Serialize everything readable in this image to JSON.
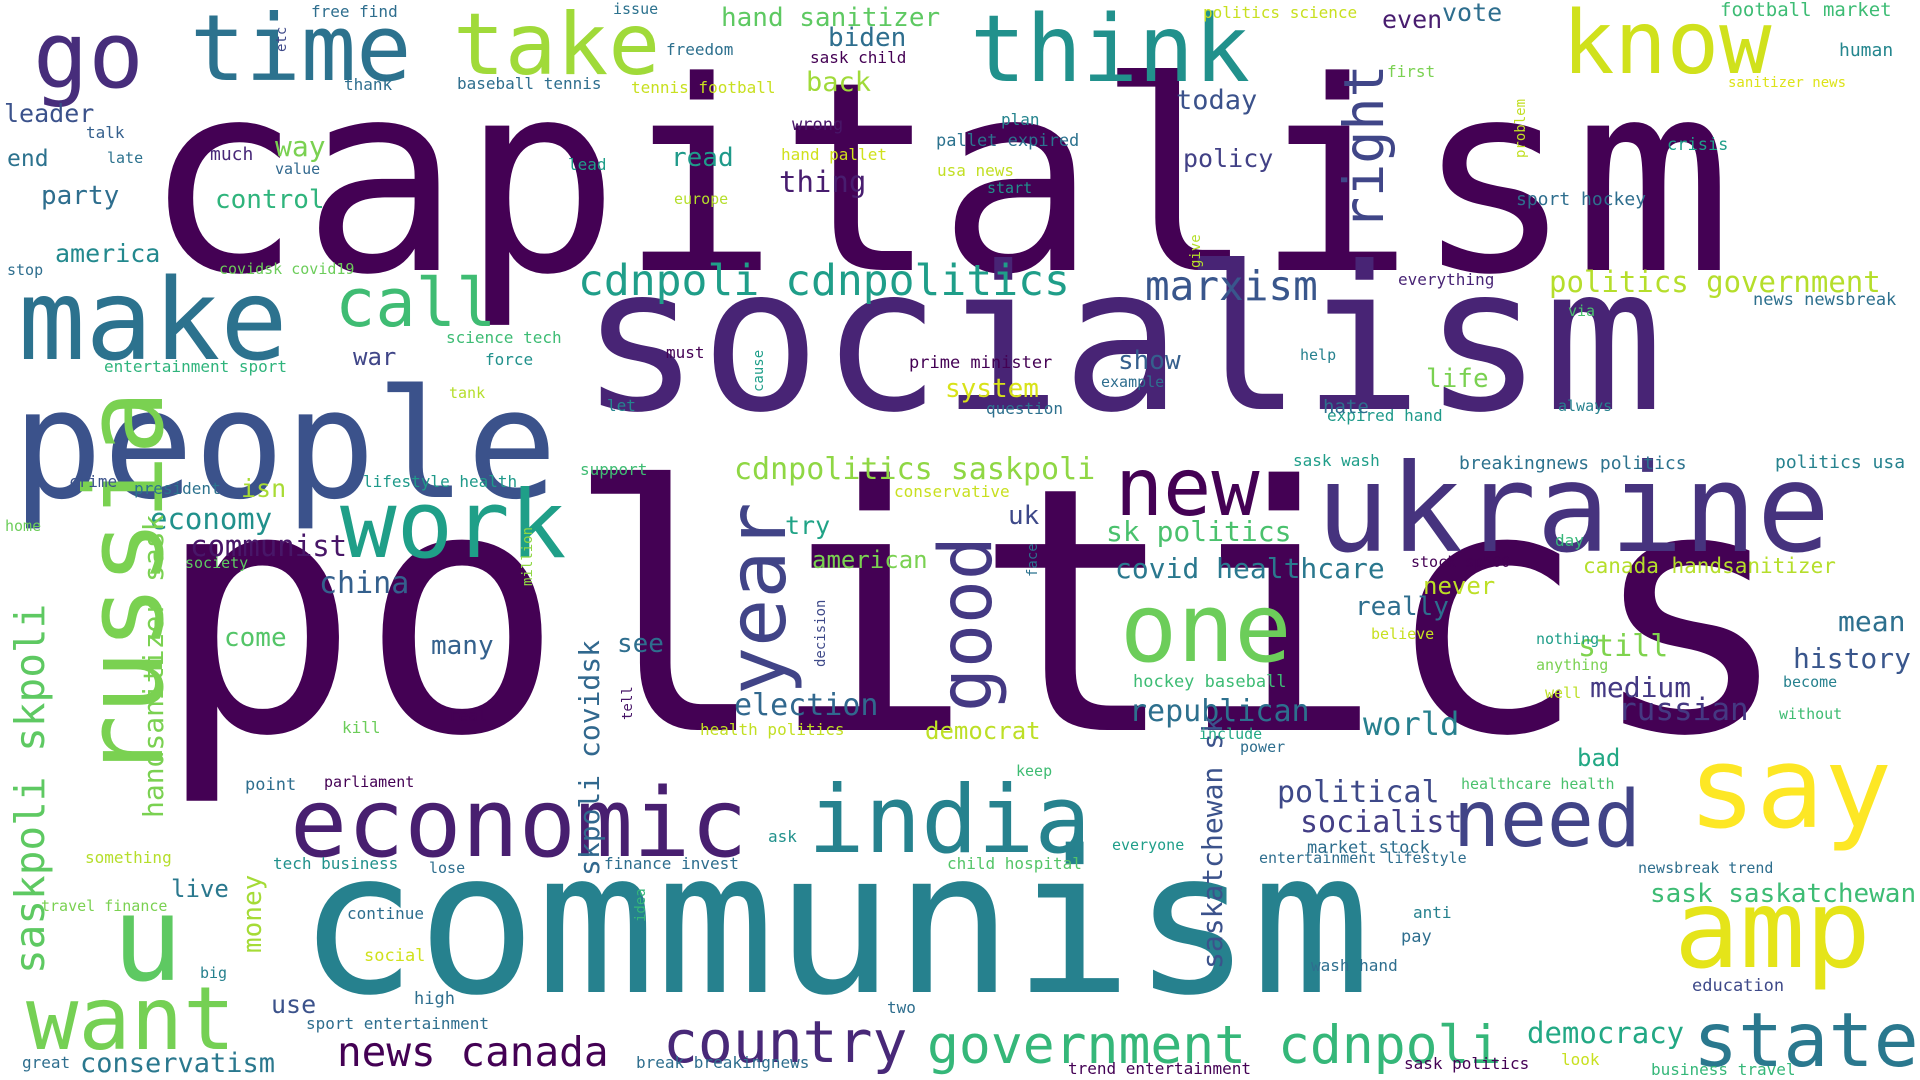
{
  "words": [
    {
      "text": "capitalism",
      "color": "#440154"
    },
    {
      "text": "politics",
      "color": "#440154"
    },
    {
      "text": "socialism",
      "color": "#482475"
    },
    {
      "text": "communism",
      "color": "#26818e"
    },
    {
      "text": "ukraine",
      "color": "#46337e"
    },
    {
      "text": "people",
      "color": "#3b528b"
    },
    {
      "text": "russia",
      "color": "#7ad151"
    },
    {
      "text": "make",
      "color": "#2c728e"
    },
    {
      "text": "think",
      "color": "#21918c"
    },
    {
      "text": "take",
      "color": "#a0da39"
    },
    {
      "text": "know",
      "color": "#d0e11c"
    },
    {
      "text": "go",
      "color": "#472d7b"
    },
    {
      "text": "time",
      "color": "#2c728e"
    },
    {
      "text": "say",
      "color": "#fde725"
    },
    {
      "text": "amp",
      "color": "#e5e419"
    },
    {
      "text": "economic",
      "color": "#481f70"
    },
    {
      "text": "india",
      "color": "#26828e"
    },
    {
      "text": "want",
      "color": "#75d054"
    },
    {
      "text": "u",
      "color": "#5ec962"
    },
    {
      "text": "one",
      "color": "#6ccd5a"
    },
    {
      "text": "work",
      "color": "#1f9f88"
    },
    {
      "text": "new",
      "color": "#440154"
    },
    {
      "text": "need",
      "color": "#414487"
    },
    {
      "text": "state",
      "color": "#2a788e"
    },
    {
      "text": "year",
      "color": "#414487"
    },
    {
      "text": "good",
      "color": "#443983"
    },
    {
      "text": "right",
      "color": "#404688"
    },
    {
      "text": "call",
      "color": "#3fbc73"
    },
    {
      "text": "country",
      "color": "#482878"
    },
    {
      "text": "government cdnpoli",
      "color": "#35b779"
    },
    {
      "text": "cdnpoli cdnpolitics",
      "color": "#1f9e89"
    },
    {
      "text": "news canada",
      "color": "#440154"
    },
    {
      "text": "saskpoli skpoli",
      "color": "#5ec962"
    },
    {
      "text": "marxism",
      "color": "#39568c"
    },
    {
      "text": "politics government",
      "color": "#b5de2b"
    },
    {
      "text": "cdnpolitics saskpoli",
      "color": "#8fd744"
    },
    {
      "text": "political",
      "color": "#3e4989"
    },
    {
      "text": "socialist",
      "color": "#433e85"
    },
    {
      "text": "republican",
      "color": "#2d708e"
    },
    {
      "text": "election",
      "color": "#31688e"
    },
    {
      "text": "world",
      "color": "#27808e"
    },
    {
      "text": "russian",
      "color": "#453882"
    },
    {
      "text": "history",
      "color": "#39568c"
    },
    {
      "text": "democracy",
      "color": "#22a884"
    },
    {
      "text": "communist",
      "color": "#481668"
    },
    {
      "text": "economy",
      "color": "#21918c"
    },
    {
      "text": "china",
      "color": "#34608d"
    },
    {
      "text": "skpoli covidsk",
      "color": "#31688e"
    },
    {
      "text": "handsanitizer sask",
      "color": "#7ad151"
    },
    {
      "text": "saskatchewan sk",
      "color": "#3b528b"
    },
    {
      "text": "covid healthcare",
      "color": "#2a788e"
    },
    {
      "text": "sk politics",
      "color": "#4ac16d"
    },
    {
      "text": "medium",
      "color": "#443983"
    },
    {
      "text": "still",
      "color": "#7fd34e"
    },
    {
      "text": "mean",
      "color": "#2d708e"
    },
    {
      "text": "sask saskatchewan",
      "color": "#3dbc74"
    },
    {
      "text": "conservatism",
      "color": "#2a788e"
    },
    {
      "text": "money",
      "color": "#a5db36"
    },
    {
      "text": "hand sanitizer",
      "color": "#5ec962"
    },
    {
      "text": "biden",
      "color": "#2e6e8e"
    },
    {
      "text": "vote",
      "color": "#2e6e8e"
    },
    {
      "text": "even",
      "color": "#481d6f"
    },
    {
      "text": "football market",
      "color": "#3dbc74"
    },
    {
      "text": "human",
      "color": "#24868e"
    },
    {
      "text": "today",
      "color": "#3b528b"
    },
    {
      "text": "policy",
      "color": "#424186"
    },
    {
      "text": "thing",
      "color": "#481d6f"
    },
    {
      "text": "read",
      "color": "#1f9a8a"
    },
    {
      "text": "control",
      "color": "#2fb47c"
    },
    {
      "text": "way",
      "color": "#7ad151"
    },
    {
      "text": "party",
      "color": "#2e6e8e"
    },
    {
      "text": "leader",
      "color": "#3b528b"
    },
    {
      "text": "end",
      "color": "#2c728e"
    },
    {
      "text": "america",
      "color": "#23898e"
    },
    {
      "text": "back",
      "color": "#a0da39"
    },
    {
      "text": "system",
      "color": "#d8e219"
    },
    {
      "text": "show",
      "color": "#355f8d"
    },
    {
      "text": "life",
      "color": "#7ad151"
    },
    {
      "text": "war",
      "color": "#404688"
    },
    {
      "text": "uk",
      "color": "#3e4989"
    },
    {
      "text": "try",
      "color": "#20a386"
    },
    {
      "text": "american",
      "color": "#7ad151"
    },
    {
      "text": "see",
      "color": "#2e6e8e"
    },
    {
      "text": "many",
      "color": "#34618d"
    },
    {
      "text": "come",
      "color": "#54c568"
    },
    {
      "text": "isn",
      "color": "#a8db34"
    },
    {
      "text": "democrat",
      "color": "#bddf26"
    },
    {
      "text": "really",
      "color": "#2e6e8e"
    },
    {
      "text": "never",
      "color": "#bddf26"
    },
    {
      "text": "canada handsanitizer",
      "color": "#b5de2b"
    },
    {
      "text": "bad",
      "color": "#22a884"
    },
    {
      "text": "live",
      "color": "#2a788e"
    },
    {
      "text": "use",
      "color": "#3b528b"
    },
    {
      "text": "politics usa",
      "color": "#26828e"
    },
    {
      "text": "breakingnews politics",
      "color": "#2c728e"
    },
    {
      "text": "sport hockey",
      "color": "#2e6e8e"
    },
    {
      "text": "crisis",
      "color": "#1f9e89"
    },
    {
      "text": "news newsbreak",
      "color": "#2d708e"
    },
    {
      "text": "expired hand",
      "color": "#1f9a8a"
    },
    {
      "text": "hate",
      "color": "#2e6e8e"
    },
    {
      "text": "everything",
      "color": "#482475"
    },
    {
      "text": "prime minister",
      "color": "#440154"
    },
    {
      "text": "question",
      "color": "#2d708e"
    },
    {
      "text": "pallet expired",
      "color": "#2c728e"
    },
    {
      "text": "usa news",
      "color": "#c2df23"
    },
    {
      "text": "plan",
      "color": "#25848e"
    },
    {
      "text": "wrong",
      "color": "#481668"
    },
    {
      "text": "hand pallet",
      "color": "#d0e11c"
    },
    {
      "text": "freedom",
      "color": "#2d708e"
    },
    {
      "text": "tennis football",
      "color": "#c8e020"
    },
    {
      "text": "baseball tennis",
      "color": "#2e6e8e"
    },
    {
      "text": "sask child",
      "color": "#440154"
    },
    {
      "text": "first",
      "color": "#7ad151"
    },
    {
      "text": "politics science",
      "color": "#c8e020"
    },
    {
      "text": "sanitizer news",
      "color": "#dde318"
    },
    {
      "text": "free find",
      "color": "#2e6e8e"
    },
    {
      "text": "issue",
      "color": "#2c728e"
    },
    {
      "text": "etc",
      "color": "#3e4989"
    },
    {
      "text": "thank",
      "color": "#2e6e8e"
    },
    {
      "text": "talk",
      "color": "#35608d"
    },
    {
      "text": "late",
      "color": "#2c728e"
    },
    {
      "text": "much",
      "color": "#482878"
    },
    {
      "text": "value",
      "color": "#31688e"
    },
    {
      "text": "lead",
      "color": "#1f9e89"
    },
    {
      "text": "europe",
      "color": "#b5de2b"
    },
    {
      "text": "start",
      "color": "#21918c"
    },
    {
      "text": "stop",
      "color": "#2e6e8e"
    },
    {
      "text": "covidsk covid19",
      "color": "#6ccd5a"
    },
    {
      "text": "entertainment sport",
      "color": "#2fb47c"
    },
    {
      "text": "science tech",
      "color": "#3dbc74"
    },
    {
      "text": "force",
      "color": "#21918c"
    },
    {
      "text": "must",
      "color": "#440154"
    },
    {
      "text": "tank",
      "color": "#b5de2b"
    },
    {
      "text": "let",
      "color": "#24868e"
    },
    {
      "text": "cause",
      "color": "#1f9e89"
    },
    {
      "text": "example",
      "color": "#2e6e8e"
    },
    {
      "text": "help",
      "color": "#26818e"
    },
    {
      "text": "always",
      "color": "#26818e"
    },
    {
      "text": "via",
      "color": "#4ac16d"
    },
    {
      "text": "give",
      "color": "#b5de2b"
    },
    {
      "text": "problem",
      "color": "#c2df23"
    },
    {
      "text": "crime",
      "color": "#3b528b"
    },
    {
      "text": "president",
      "color": "#2c728e"
    },
    {
      "text": "lifestyle health",
      "color": "#1f9a8a"
    },
    {
      "text": "support",
      "color": "#3fbc73"
    },
    {
      "text": "conservative",
      "color": "#c8e020"
    },
    {
      "text": "home",
      "color": "#6ccd5a"
    },
    {
      "text": "society",
      "color": "#5ec962"
    },
    {
      "text": "million",
      "color": "#8fd744"
    },
    {
      "text": "face",
      "color": "#2c728e"
    },
    {
      "text": "decision",
      "color": "#3e4989"
    },
    {
      "text": "tell",
      "color": "#481668"
    },
    {
      "text": "day",
      "color": "#35b779"
    },
    {
      "text": "stock sp500",
      "color": "#440154"
    },
    {
      "text": "believe",
      "color": "#c8e020"
    },
    {
      "text": "nothing",
      "color": "#1f9e89"
    },
    {
      "text": "anything",
      "color": "#7ad151"
    },
    {
      "text": "hockey baseball",
      "color": "#3dbc74"
    },
    {
      "text": "well",
      "color": "#bddf26"
    },
    {
      "text": "become",
      "color": "#26818e"
    },
    {
      "text": "without",
      "color": "#3fbc73"
    },
    {
      "text": "kill",
      "color": "#6ccd5a"
    },
    {
      "text": "real",
      "color": "#440154"
    },
    {
      "text": "health politics",
      "color": "#c2df23"
    },
    {
      "text": "include",
      "color": "#22a884"
    },
    {
      "text": "power",
      "color": "#2e6e8e"
    },
    {
      "text": "point",
      "color": "#2e6e8e"
    },
    {
      "text": "parliament",
      "color": "#440154"
    },
    {
      "text": "keep",
      "color": "#3fbc73"
    },
    {
      "text": "healthcare health",
      "color": "#4ac16d"
    },
    {
      "text": "something",
      "color": "#b5de2b"
    },
    {
      "text": "ask",
      "color": "#21918c"
    },
    {
      "text": "everyone",
      "color": "#1f9e89"
    },
    {
      "text": "market stock",
      "color": "#2e6e8e"
    },
    {
      "text": "tech business",
      "color": "#21918c"
    },
    {
      "text": "lose",
      "color": "#2e6e8e"
    },
    {
      "text": "finance invest",
      "color": "#2e6e8e"
    },
    {
      "text": "child hospital",
      "color": "#54c568"
    },
    {
      "text": "entertainment lifestyle",
      "color": "#2e6e8e"
    },
    {
      "text": "newsbreak trend",
      "color": "#2e6e8e"
    },
    {
      "text": "travel finance",
      "color": "#7ad151"
    },
    {
      "text": "continue",
      "color": "#2e6e8e"
    },
    {
      "text": "idea",
      "color": "#35b779"
    },
    {
      "text": "anti",
      "color": "#26818e"
    },
    {
      "text": "social",
      "color": "#d0e11c"
    },
    {
      "text": "big",
      "color": "#26818e"
    },
    {
      "text": "wash hand",
      "color": "#2e6e8e"
    },
    {
      "text": "pay",
      "color": "#2e6e8e"
    },
    {
      "text": "education",
      "color": "#3e4989"
    },
    {
      "text": "high",
      "color": "#2e6e8e"
    },
    {
      "text": "two",
      "color": "#2e6e8e"
    },
    {
      "text": "sport entertainment",
      "color": "#2e6e8e"
    },
    {
      "text": "great",
      "color": "#2e6e8e"
    },
    {
      "text": "break breakingnews",
      "color": "#2e6e8e"
    },
    {
      "text": "trend entertainment",
      "color": "#440154"
    },
    {
      "text": "sask politics",
      "color": "#440154"
    },
    {
      "text": "look",
      "color": "#c8e020"
    },
    {
      "text": "business travel",
      "color": "#35b779"
    },
    {
      "text": "sask wash",
      "color": "#1f9e89"
    }
  ]
}
